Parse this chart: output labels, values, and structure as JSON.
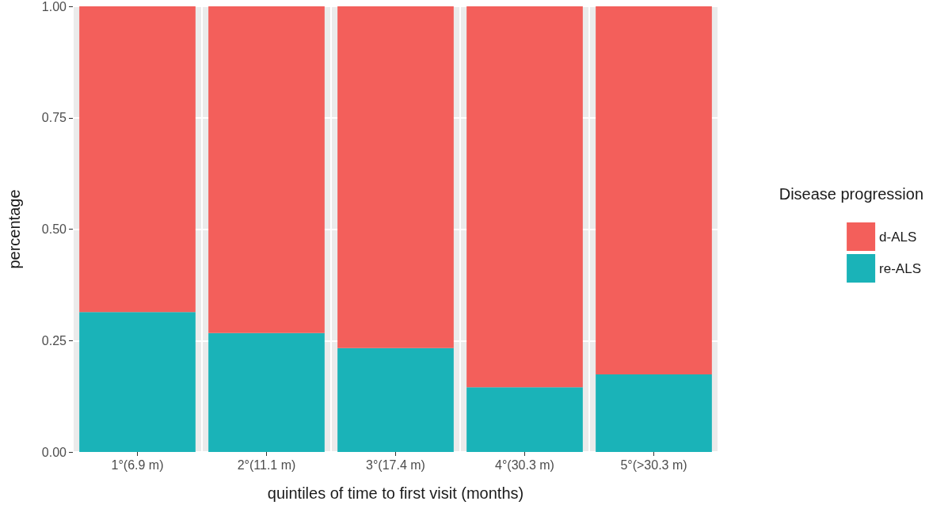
{
  "chart_data": {
    "type": "bar",
    "stacked": true,
    "xlabel": "quintiles of time to first visit (months)",
    "ylabel": "percentage",
    "legend_title": "Disease progression",
    "categories": [
      "1°(6.9 m)",
      "2°(11.1 m)",
      "3°(17.4 m)",
      "4°(30.3 m)",
      "5°(>30.3 m)"
    ],
    "series": [
      {
        "name": "re-ALS",
        "color": "#1ab3b8",
        "values": [
          0.314,
          0.267,
          0.233,
          0.145,
          0.174
        ]
      },
      {
        "name": "d-ALS",
        "color": "#f35f5b",
        "values": [
          0.686,
          0.733,
          0.767,
          0.855,
          0.826
        ]
      }
    ],
    "ylim": [
      0,
      1
    ],
    "yticks": [
      {
        "value": 0,
        "label": "0.00"
      },
      {
        "value": 0.25,
        "label": "0.25"
      },
      {
        "value": 0.5,
        "label": "0.50"
      },
      {
        "value": 0.75,
        "label": "0.75"
      },
      {
        "value": 1,
        "label": "1.00"
      }
    ],
    "grid": true,
    "legend": "right"
  }
}
